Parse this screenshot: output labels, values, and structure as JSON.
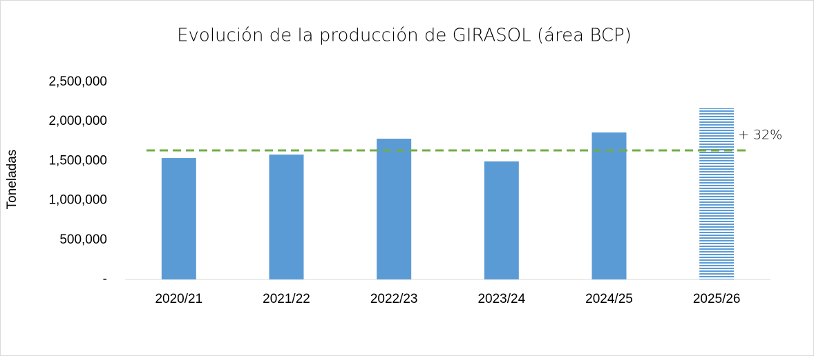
{
  "chart_data": {
    "type": "bar",
    "title": "Evolución de la producción de GIRASOL (área BCP)",
    "y_label": "Toneladas",
    "categories": [
      "2020/21",
      "2021/22",
      "2022/23",
      "2023/24",
      "2024/25",
      "2025/26"
    ],
    "values": [
      1538000,
      1582000,
      1783000,
      1495000,
      1862000,
      2168000
    ],
    "color": "#5b9bd5",
    "bar_styles": [
      "solid",
      "solid",
      "solid",
      "solid",
      "solid",
      "striped"
    ],
    "reference_line": {
      "value": 1635000,
      "color": "#70ad47",
      "style": "dashed"
    },
    "annotation": "+ 32%",
    "ylim": [
      0,
      2500000
    ],
    "yticks": [
      {
        "value": 0,
        "label": "-"
      },
      {
        "value": 500000,
        "label": "500,000"
      },
      {
        "value": 1000000,
        "label": "1,000,000"
      },
      {
        "value": 1500000,
        "label": "1,500,000"
      },
      {
        "value": 2000000,
        "label": "2,000,000"
      },
      {
        "value": 2500000,
        "label": "2,500,000"
      }
    ],
    "grid": false
  }
}
